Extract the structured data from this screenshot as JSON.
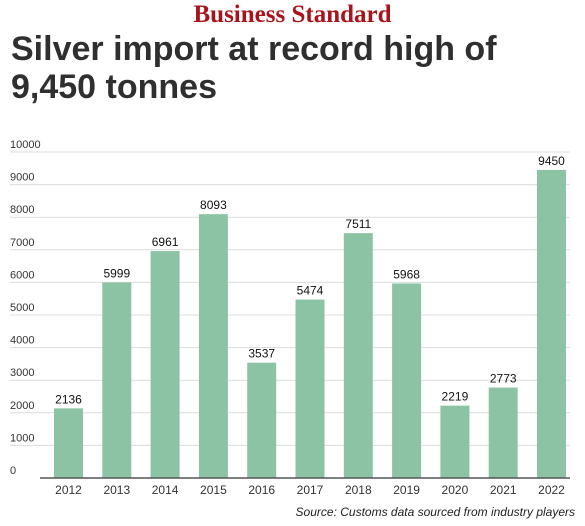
{
  "brand": "Business Standard",
  "title": "Silver import at record high of 9,450 tonnes",
  "source": "Source: Customs data sourced from industry players",
  "colors": {
    "bar": "#8cc3a5",
    "grid": "#dcdcdc",
    "axis": "#555555",
    "title": "#2f2f2f",
    "brand": "#a8141b"
  },
  "chart_data": {
    "type": "bar",
    "categories": [
      "2012",
      "2013",
      "2014",
      "2015",
      "2016",
      "2017",
      "2018",
      "2019",
      "2020",
      "2021",
      "2022"
    ],
    "values": [
      2136,
      5999,
      6961,
      8093,
      3537,
      5474,
      7511,
      5968,
      2219,
      2773,
      9450
    ],
    "data_labels": [
      "2136",
      "5999",
      "6961",
      "8093",
      "3537",
      "5474",
      "7511",
      "5968",
      "2219",
      "2773",
      "9450"
    ],
    "ylim": [
      0,
      10000
    ],
    "yticks": [
      0,
      1000,
      2000,
      3000,
      4000,
      5000,
      6000,
      7000,
      8000,
      9000,
      10000
    ],
    "ytick_labels": [
      "0",
      "1000",
      "2000",
      "3000",
      "4000",
      "5000",
      "6000",
      "7000",
      "8000",
      "9000",
      "10000"
    ],
    "grid": true,
    "xlabel": "",
    "ylabel": ""
  }
}
